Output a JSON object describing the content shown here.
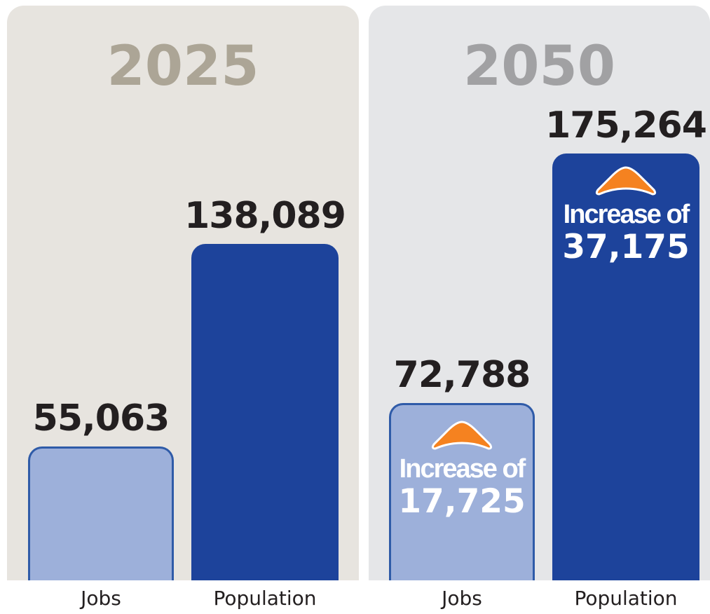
{
  "chart_data": [
    {
      "type": "bar",
      "title": "2025",
      "categories": [
        "Jobs",
        "Population"
      ],
      "values": [
        55063,
        138089
      ],
      "value_labels": [
        "55,063",
        "138,089"
      ],
      "colors": [
        "#9db0da",
        "#1d439b"
      ],
      "panel_color": "#e7e4df",
      "title_color": "#aca596"
    },
    {
      "type": "bar",
      "title": "2050",
      "categories": [
        "Jobs",
        "Population"
      ],
      "values": [
        72788,
        175264
      ],
      "value_labels": [
        "72,788",
        "175,264"
      ],
      "colors": [
        "#9db0da",
        "#1d439b"
      ],
      "panel_color": "#e5e6e8",
      "title_color": "#a1a1a3",
      "increases": [
        {
          "label": "Increase of",
          "value": 17725,
          "value_label": "17,725",
          "icon": "orange-up-arrow-icon"
        },
        {
          "label": "Increase of",
          "value": 37175,
          "value_label": "37,175",
          "icon": "orange-up-arrow-icon"
        }
      ],
      "accent": "#f58220"
    }
  ]
}
